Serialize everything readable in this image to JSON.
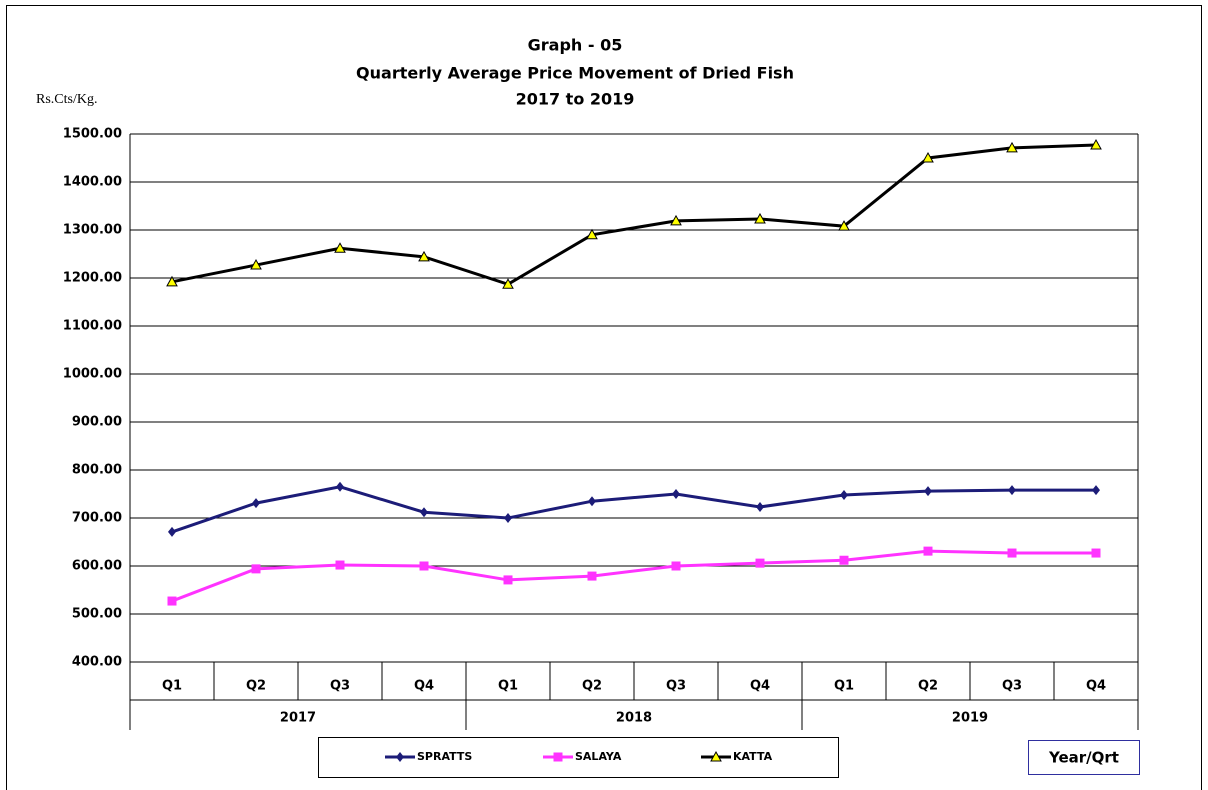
{
  "chart_data": {
    "type": "line",
    "title": "Graph - 05",
    "subtitle": "Quarterly Average Price Movement of Dried Fish",
    "period": "2017 to 2019",
    "y_label": "Rs.Cts/Kg.",
    "x_label": "Year/Qrt",
    "categories": [
      "Q1",
      "Q2",
      "Q3",
      "Q4",
      "Q1",
      "Q2",
      "Q3",
      "Q4",
      "Q1",
      "Q2",
      "Q3",
      "Q4"
    ],
    "groups": [
      "2017",
      "2018",
      "2019"
    ],
    "series": [
      {
        "name": "SPRATTS",
        "color": "#1c1c78",
        "marker": "diamond",
        "values": [
          671,
          731,
          765,
          712,
          700,
          735,
          750,
          723,
          748,
          756,
          758,
          758
        ]
      },
      {
        "name": "SALAYA",
        "color": "#ff33ff",
        "marker": "square",
        "values": [
          527,
          594,
          602,
          600,
          571,
          579,
          600,
          606,
          612,
          631,
          627,
          627
        ]
      },
      {
        "name": "KATTA",
        "color": "#000000",
        "marker": "triangle",
        "values": [
          1192,
          1227,
          1262,
          1244,
          1187,
          1290,
          1319,
          1323,
          1308,
          1450,
          1471,
          1477
        ]
      }
    ],
    "ylim": [
      400,
      1500
    ],
    "yticks": [
      {
        "value": 400,
        "label": "400.00"
      },
      {
        "value": 500,
        "label": "500.00"
      },
      {
        "value": 600,
        "label": "600.00"
      },
      {
        "value": 700,
        "label": "700.00"
      },
      {
        "value": 800,
        "label": "800.00"
      },
      {
        "value": 900,
        "label": "900.00"
      },
      {
        "value": 1000,
        "label": "1000.00"
      },
      {
        "value": 1100,
        "label": "1100.00"
      },
      {
        "value": 1200,
        "label": "1200.00"
      },
      {
        "value": 1300,
        "label": "1300.00"
      },
      {
        "value": 1400,
        "label": "1400.00"
      },
      {
        "value": 1500,
        "label": "1500.00"
      }
    ],
    "grid": true
  }
}
